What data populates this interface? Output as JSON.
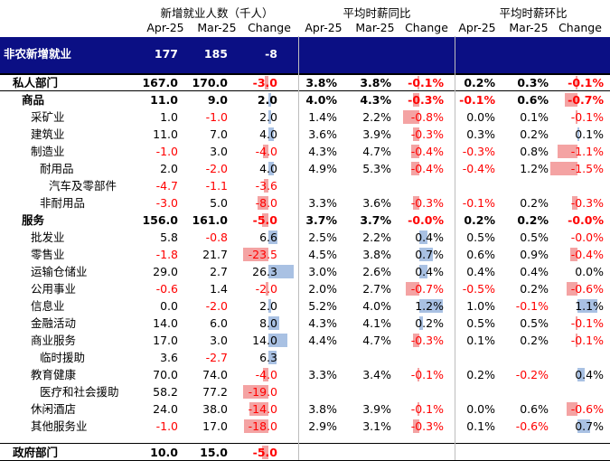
{
  "headers": {
    "group_employment": "新增就业人数（千人）",
    "group_yoy": "平均时薪同比",
    "group_mom": "平均时薪环比",
    "sub": [
      "Apr-25",
      "Mar-25",
      "Change",
      "Apr-25",
      "Mar-25",
      "Change",
      "Apr-25",
      "Mar-25",
      "Change"
    ]
  },
  "colors": {
    "band": "#0b0f84",
    "negative": "#ff0000",
    "positive_bar": "#a9c1e3",
    "negative_bar": "#f4a3a3"
  },
  "rows": [
    {
      "label": "非农新增就业",
      "style": "top",
      "emp": [
        "177",
        "185",
        "-8"
      ],
      "yoy": [
        "",
        "",
        ""
      ],
      "mom": [
        "",
        "",
        ""
      ]
    },
    {
      "label": "私人部门",
      "style": "private",
      "emp": [
        "167.0",
        "170.0",
        "-3.0"
      ],
      "yoy": [
        "3.8%",
        "3.8%",
        "-0.1%"
      ],
      "mom": [
        "0.2%",
        "0.3%",
        "-0.1%"
      ]
    },
    {
      "label": "商品",
      "style": "bold1",
      "emp": [
        "11.0",
        "9.0",
        "2.0"
      ],
      "yoy": [
        "4.0%",
        "4.3%",
        "-0.3%"
      ],
      "mom": [
        "-0.1%",
        "0.6%",
        "-0.7%"
      ]
    },
    {
      "label": "采矿业",
      "style": "l2",
      "emp": [
        "1.0",
        "-1.0",
        "2.0"
      ],
      "yoy": [
        "1.4%",
        "2.2%",
        "-0.8%"
      ],
      "mom": [
        "0.0%",
        "0.1%",
        "-0.1%"
      ]
    },
    {
      "label": "建筑业",
      "style": "l2",
      "emp": [
        "11.0",
        "7.0",
        "4.0"
      ],
      "yoy": [
        "3.6%",
        "3.9%",
        "-0.3%"
      ],
      "mom": [
        "0.3%",
        "0.2%",
        "0.1%"
      ]
    },
    {
      "label": "制造业",
      "style": "l2",
      "emp": [
        "-1.0",
        "3.0",
        "-4.0"
      ],
      "yoy": [
        "4.3%",
        "4.7%",
        "-0.4%"
      ],
      "mom": [
        "-0.3%",
        "0.8%",
        "-1.1%"
      ]
    },
    {
      "label": "耐用品",
      "style": "l3",
      "emp": [
        "2.0",
        "-2.0",
        "4.0"
      ],
      "yoy": [
        "4.9%",
        "5.3%",
        "-0.4%"
      ],
      "mom": [
        "-0.4%",
        "1.2%",
        "-1.5%"
      ]
    },
    {
      "label": "汽车及零部件",
      "style": "l4",
      "emp": [
        "-4.7",
        "-1.1",
        "-3.6"
      ],
      "yoy": [
        "",
        "",
        ""
      ],
      "mom": [
        "",
        "",
        ""
      ]
    },
    {
      "label": "非耐用品",
      "style": "l3",
      "emp": [
        "-3.0",
        "5.0",
        "-8.0"
      ],
      "yoy": [
        "3.3%",
        "3.6%",
        "-0.3%"
      ],
      "mom": [
        "-0.1%",
        "0.2%",
        "-0.3%"
      ]
    },
    {
      "label": "服务",
      "style": "bold1",
      "emp": [
        "156.0",
        "161.0",
        "-5.0"
      ],
      "yoy": [
        "3.7%",
        "3.7%",
        "-0.0%"
      ],
      "mom": [
        "0.2%",
        "0.2%",
        "-0.0%"
      ]
    },
    {
      "label": "批发业",
      "style": "l2",
      "emp": [
        "5.8",
        "-0.8",
        "6.6"
      ],
      "yoy": [
        "2.5%",
        "2.2%",
        "0.4%"
      ],
      "mom": [
        "0.5%",
        "0.5%",
        "-0.0%"
      ]
    },
    {
      "label": "零售业",
      "style": "l2",
      "emp": [
        "-1.8",
        "21.7",
        "-23.5"
      ],
      "yoy": [
        "4.5%",
        "3.8%",
        "0.7%"
      ],
      "mom": [
        "0.6%",
        "0.9%",
        "-0.4%"
      ]
    },
    {
      "label": "运输仓储业",
      "style": "l2",
      "emp": [
        "29.0",
        "2.7",
        "26.3"
      ],
      "yoy": [
        "3.0%",
        "2.6%",
        "0.4%"
      ],
      "mom": [
        "0.4%",
        "0.4%",
        "0.0%"
      ]
    },
    {
      "label": "公用事业",
      "style": "l2",
      "emp": [
        "-0.6",
        "1.4",
        "-2.0"
      ],
      "yoy": [
        "2.0%",
        "2.7%",
        "-0.7%"
      ],
      "mom": [
        "-0.5%",
        "0.2%",
        "-0.6%"
      ]
    },
    {
      "label": "信息业",
      "style": "l2",
      "emp": [
        "0.0",
        "-2.0",
        "2.0"
      ],
      "yoy": [
        "5.2%",
        "4.0%",
        "1.2%"
      ],
      "mom": [
        "1.0%",
        "-0.1%",
        "1.1%"
      ]
    },
    {
      "label": "金融活动",
      "style": "l2",
      "emp": [
        "14.0",
        "6.0",
        "8.0"
      ],
      "yoy": [
        "4.3%",
        "4.1%",
        "0.2%"
      ],
      "mom": [
        "0.5%",
        "0.5%",
        "-0.1%"
      ]
    },
    {
      "label": "商业服务",
      "style": "l2",
      "emp": [
        "17.0",
        "3.0",
        "14.0"
      ],
      "yoy": [
        "4.4%",
        "4.7%",
        "-0.3%"
      ],
      "mom": [
        "0.1%",
        "0.2%",
        "-0.1%"
      ]
    },
    {
      "label": "临时援助",
      "style": "l3",
      "emp": [
        "3.6",
        "-2.7",
        "6.3"
      ],
      "yoy": [
        "",
        "",
        ""
      ],
      "mom": [
        "",
        "",
        ""
      ]
    },
    {
      "label": "教育健康",
      "style": "l2",
      "emp": [
        "70.0",
        "74.0",
        "-4.0"
      ],
      "yoy": [
        "3.3%",
        "3.4%",
        "-0.1%"
      ],
      "mom": [
        "0.2%",
        "-0.2%",
        "0.4%"
      ]
    },
    {
      "label": "医疗和社会援助",
      "style": "l3",
      "emp": [
        "58.2",
        "77.2",
        "-19.0"
      ],
      "yoy": [
        "",
        "",
        ""
      ],
      "mom": [
        "",
        "",
        ""
      ]
    },
    {
      "label": "休闲酒店",
      "style": "l2",
      "emp": [
        "24.0",
        "38.0",
        "-14.0"
      ],
      "yoy": [
        "3.8%",
        "3.9%",
        "-0.1%"
      ],
      "mom": [
        "0.0%",
        "0.6%",
        "-0.6%"
      ]
    },
    {
      "label": "其他服务业",
      "style": "l2",
      "emp": [
        "-1.0",
        "17.0",
        "-18.0"
      ],
      "yoy": [
        "2.9%",
        "3.1%",
        "-0.3%"
      ],
      "mom": [
        "0.1%",
        "-0.6%",
        "0.7%"
      ]
    },
    {
      "label": "政府部门",
      "style": "private",
      "emp": [
        "10.0",
        "15.0",
        "-5.0"
      ],
      "yoy": [
        "",
        "",
        ""
      ],
      "mom": [
        "",
        "",
        ""
      ]
    }
  ]
}
